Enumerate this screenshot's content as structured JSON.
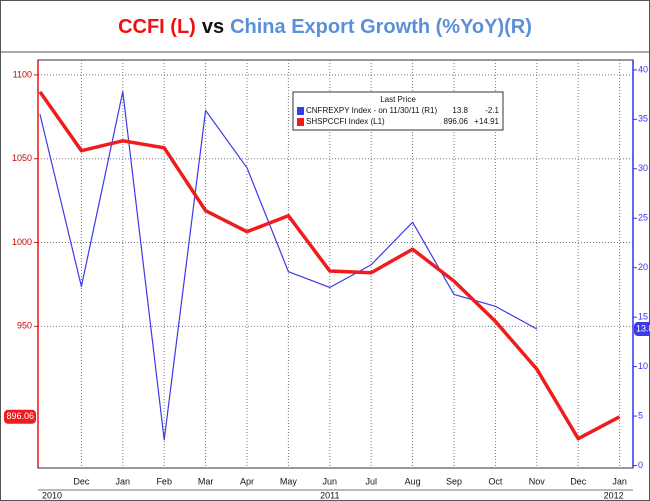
{
  "chart_data": {
    "type": "line",
    "title": [
      {
        "text": "CCFI (L)",
        "color": "#ee1111"
      },
      {
        "text": "vs",
        "color": "#111111"
      },
      {
        "text": "China Export Growth (%YoY)(R)",
        "color": "#5b8fd6"
      }
    ],
    "categories": [
      null,
      "Dec",
      "Jan",
      "Feb",
      "Mar",
      "Apr",
      "May",
      "Jun",
      "Jul",
      "Aug",
      "Sep",
      "Oct",
      "Nov",
      "Dec",
      "Jan"
    ],
    "years": [
      "2010",
      "2011",
      "2012"
    ],
    "legend": {
      "title": "Last Price"
    },
    "series": [
      {
        "name": "CNFREXPY Index - on 11/30/11 (R1)",
        "color": "#3a3ae8",
        "axis": "y2",
        "last": "13.8",
        "change": "-2.1",
        "values": [
          35.5,
          18.1,
          37.8,
          2.6,
          35.9,
          30.1,
          19.6,
          18.0,
          20.3,
          24.6,
          17.3,
          16.1,
          13.8,
          null,
          null
        ]
      },
      {
        "name": "SHSPCCFI Index (L1)",
        "color": "#ee1c1c",
        "last": "896.06",
        "change": "+14.91",
        "values": [
          1089.9,
          1054.8,
          1060.7,
          1056.5,
          1019,
          1006.5,
          1016,
          983,
          982,
          996,
          977,
          953,
          924.5,
          883,
          896.06
        ]
      }
    ],
    "ylim": [
      865.5,
      1108.9
    ],
    "yticks": [
      950,
      1000,
      1050,
      1100
    ],
    "y2lim": [
      -0.25,
      41
    ],
    "y2ticks": [
      0,
      5,
      10,
      15,
      20,
      25,
      30,
      35,
      40
    ],
    "grid": true
  }
}
